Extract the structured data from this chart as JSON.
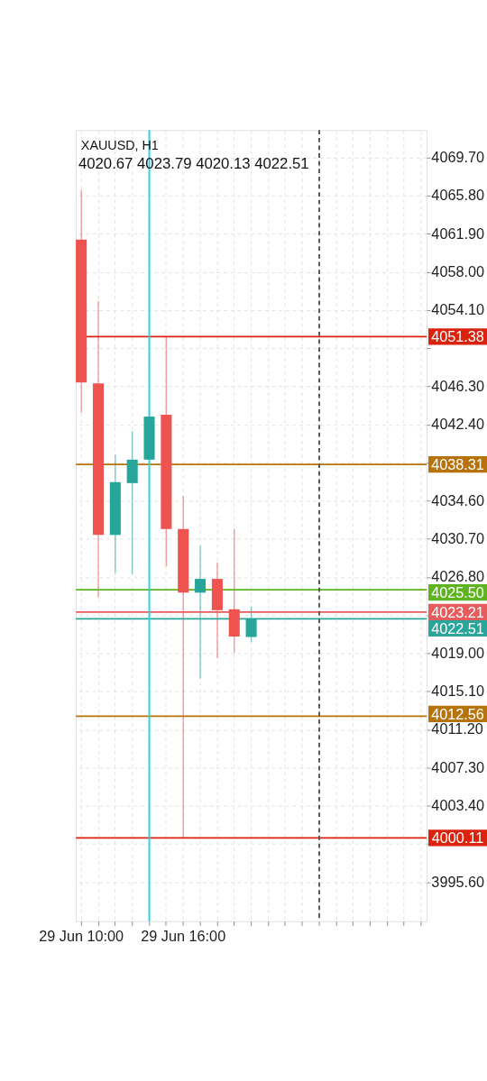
{
  "chart_data": {
    "type": "candlestick",
    "title": "XAUUSD, H1",
    "subtitle": "4020.67 4023.79 4020.13 4022.51",
    "categories": [
      "29 Jun 10:00",
      null,
      null,
      null,
      null,
      null,
      "29 Jun 16:00",
      null,
      null,
      null,
      null,
      null,
      null,
      null,
      null,
      null,
      null,
      null,
      null,
      null,
      null
    ],
    "ohlc": [
      [
        4061.3,
        4066.4,
        4043.6,
        4046.7
      ],
      [
        4046.6,
        4055.0,
        4024.7,
        4031.1
      ],
      [
        4031.1,
        4039.3,
        4027.2,
        4036.5
      ],
      [
        4036.4,
        4041.7,
        4027.1,
        4038.8
      ],
      [
        4038.8,
        4043.2,
        4038.8,
        4043.2
      ],
      [
        4043.4,
        4051.3,
        4027.9,
        4031.7
      ],
      [
        4031.7,
        4035.1,
        4000.1,
        4025.2
      ],
      [
        4025.2,
        4030.0,
        4016.4,
        4026.6
      ],
      [
        4026.6,
        4028.3,
        4018.5,
        4023.4
      ],
      [
        4023.5,
        4031.7,
        4019.0,
        4020.7
      ],
      [
        4020.67,
        4023.79,
        4020.13,
        4022.51
      ],
      null,
      null,
      null,
      null,
      null,
      null,
      null,
      null,
      null,
      null
    ],
    "colors": [
      "#ef5350",
      "#ef5350",
      "#26a69a",
      "#26a69a",
      "#26a69a",
      "#ef5350",
      "#ef5350",
      "#26a69a",
      "#ef5350",
      "#ef5350",
      "#26a69a",
      null,
      null,
      null,
      null,
      null,
      null,
      null,
      null,
      null,
      null
    ],
    "ylim": [
      3991.6,
      4072.5
    ],
    "yticks": [
      {
        "value": 4069.7,
        "label": "4069.70"
      },
      {
        "value": 4065.8,
        "label": "4065.80"
      },
      {
        "value": 4061.9,
        "label": "4061.90"
      },
      {
        "value": 4058.0,
        "label": "4058.00"
      },
      {
        "value": 4054.1,
        "label": "4054.10"
      },
      {
        "value": 4050.2,
        "label": null
      },
      {
        "value": 4046.3,
        "label": "4046.30"
      },
      {
        "value": 4042.4,
        "label": "4042.40"
      },
      {
        "value": 4038.5,
        "label": null
      },
      {
        "value": 4034.6,
        "label": "4034.60"
      },
      {
        "value": 4030.7,
        "label": "4030.70"
      },
      {
        "value": 4026.8,
        "label": "4026.80"
      },
      {
        "value": 4022.9,
        "label": null
      },
      {
        "value": 4019.0,
        "label": "4019.00"
      },
      {
        "value": 4015.1,
        "label": "4015.10"
      },
      {
        "value": 4011.2,
        "label": "4011.20"
      },
      {
        "value": 4007.3,
        "label": "4007.30"
      },
      {
        "value": 4003.4,
        "label": "4003.40"
      },
      {
        "value": 3999.5,
        "label": null
      },
      {
        "value": 3995.6,
        "label": "3995.60"
      }
    ],
    "ref_lines": [
      {
        "axis": "y",
        "value": 4051.38,
        "label": "4051.38",
        "color": "#d9230f"
      },
      {
        "axis": "y",
        "value": 4038.31,
        "label": "4038.31",
        "color": "#b8720a"
      },
      {
        "axis": "y",
        "value": 4025.5,
        "label": "4025.50",
        "color": "#5db41e"
      },
      {
        "axis": "y",
        "value": 4023.21,
        "label": "4023.21",
        "color": "#e65c5c"
      },
      {
        "axis": "y",
        "value": 4022.51,
        "label": "4022.51",
        "color": "#2aa59a"
      },
      {
        "axis": "y",
        "value": 4012.56,
        "label": "4012.56",
        "color": "#b8720a"
      },
      {
        "axis": "y",
        "value": 4000.11,
        "label": "4000.11",
        "color": "#d9230f"
      }
    ],
    "grid": true
  }
}
